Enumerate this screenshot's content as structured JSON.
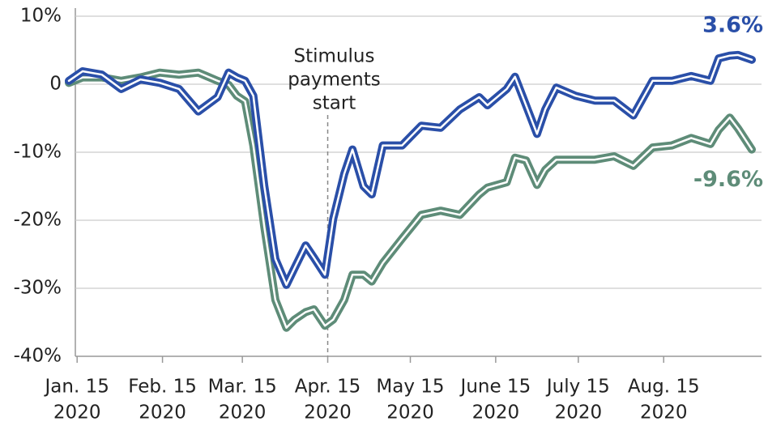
{
  "chart_data": {
    "type": "line",
    "x": [
      "2020-01-12",
      "2020-01-17",
      "2020-01-24",
      "2020-01-31",
      "2020-02-07",
      "2020-02-14",
      "2020-02-21",
      "2020-02-28",
      "2020-03-06",
      "2020-03-10",
      "2020-03-13",
      "2020-03-16",
      "2020-03-19",
      "2020-03-23",
      "2020-03-27",
      "2020-03-31",
      "2020-04-03",
      "2020-04-07",
      "2020-04-10",
      "2020-04-14",
      "2020-04-17",
      "2020-04-21",
      "2020-04-24",
      "2020-04-28",
      "2020-05-01",
      "2020-05-05",
      "2020-05-12",
      "2020-05-19",
      "2020-05-26",
      "2020-06-02",
      "2020-06-09",
      "2020-06-12",
      "2020-06-19",
      "2020-06-22",
      "2020-06-26",
      "2020-06-30",
      "2020-07-03",
      "2020-07-07",
      "2020-07-14",
      "2020-07-21",
      "2020-07-28",
      "2020-08-04",
      "2020-08-11",
      "2020-08-18",
      "2020-08-25",
      "2020-09-01",
      "2020-09-04",
      "2020-09-08",
      "2020-09-11",
      "2020-09-16"
    ],
    "series": [
      {
        "color": "#5e8c78",
        "end_label": "-9.6%",
        "values": [
          0.2,
          1,
          1,
          0.5,
          1,
          1.7,
          1.4,
          1.7,
          0.5,
          -0.1,
          -1.7,
          -2.5,
          -9,
          -21,
          -31.7,
          -35.8,
          -34.6,
          -33.5,
          -33.1,
          -35.5,
          -34.6,
          -31.7,
          -28,
          -28,
          -29,
          -26.3,
          -22.7,
          -19.2,
          -18.6,
          -19.2,
          -16.2,
          -15.2,
          -14.4,
          -10.8,
          -11.2,
          -14.8,
          -12.6,
          -11.1,
          -11.1,
          -11.1,
          -10.6,
          -12,
          -9.3,
          -9,
          -7.9,
          -8.8,
          -6.7,
          -4.9,
          -6.5,
          -9.6
        ]
      },
      {
        "color": "#2a4fa8",
        "end_label": "3.6%",
        "values": [
          0.5,
          1.9,
          1.4,
          -0.7,
          0.7,
          0.2,
          -0.7,
          -4,
          -1.9,
          1.7,
          1,
          0.5,
          -1.7,
          -15,
          -25.7,
          -29.5,
          -27,
          -23.7,
          -25.5,
          -28,
          -19.8,
          -13.2,
          -9.6,
          -15,
          -16.2,
          -9,
          -9,
          -6.1,
          -6.4,
          -3.7,
          -1.9,
          -3.1,
          -0.7,
          1.1,
          -3.1,
          -7.3,
          -3.7,
          -0.5,
          -1.7,
          -2.4,
          -2.4,
          -4.6,
          0.5,
          0.5,
          1.2,
          0.5,
          3.8,
          4.2,
          4.3,
          3.6
        ]
      }
    ],
    "xlim": [
      "2020-01-12",
      "2020-09-16"
    ],
    "xticks": [
      {
        "value": "2020-01-15",
        "label": [
          "Jan. 15",
          "2020"
        ]
      },
      {
        "value": "2020-02-15",
        "label": [
          "Feb. 15",
          "2020"
        ]
      },
      {
        "value": "2020-03-15",
        "label": [
          "Mar. 15",
          "2020"
        ]
      },
      {
        "value": "2020-04-15",
        "label": [
          "Apr. 15",
          "2020"
        ]
      },
      {
        "value": "2020-05-15",
        "label": [
          "May 15",
          "2020"
        ]
      },
      {
        "value": "2020-06-15",
        "label": [
          "June 15",
          "2020"
        ]
      },
      {
        "value": "2020-07-15",
        "label": [
          "July 15",
          "2020"
        ]
      },
      {
        "value": "2020-08-15",
        "label": [
          "Aug. 15",
          "2020"
        ]
      }
    ],
    "ylim": [
      -40,
      10
    ],
    "yticks": [
      {
        "value": 10,
        "label": "10%"
      },
      0,
      {
        "value": -10,
        "label": "-10%"
      },
      {
        "value": -20,
        "label": "-20%"
      },
      {
        "value": -30,
        "label": "-30%"
      },
      {
        "value": -40,
        "label": "-40%"
      }
    ],
    "grid": true,
    "annotation": {
      "x": "2020-04-15",
      "text": [
        "Stimulus",
        "payments",
        "start"
      ]
    }
  }
}
